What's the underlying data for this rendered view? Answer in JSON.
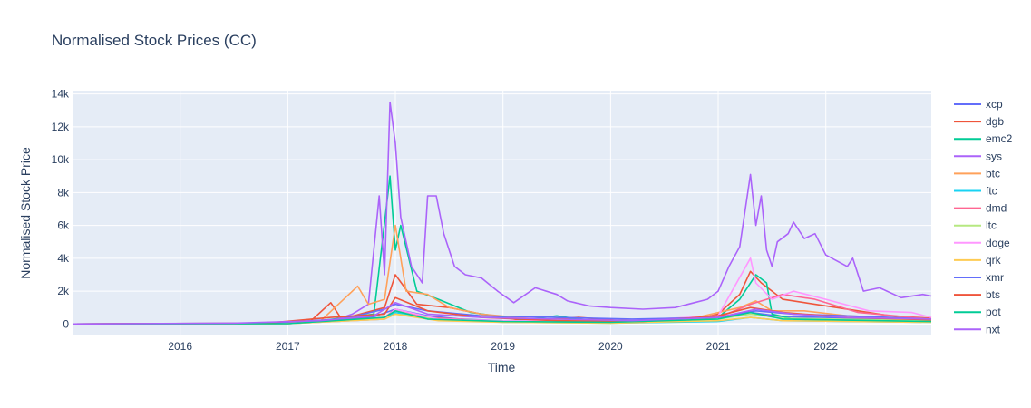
{
  "chart_data": {
    "type": "line",
    "title": "Normalised Stock Prices (CC)",
    "xlabel": "Time",
    "ylabel": "Normalised Stock Price",
    "xlim": [
      2015.0,
      2022.98
    ],
    "ylim": [
      -700,
      14200
    ],
    "x_ticks": [
      2016,
      2017,
      2018,
      2019,
      2020,
      2021,
      2022
    ],
    "x_tick_labels": [
      "2016",
      "2017",
      "2018",
      "2019",
      "2020",
      "2021",
      "2022"
    ],
    "y_ticks": [
      0,
      2000,
      4000,
      6000,
      8000,
      10000,
      12000,
      14000
    ],
    "y_tick_labels": [
      "0",
      "2k",
      "4k",
      "6k",
      "8k",
      "10k",
      "12k",
      "14k"
    ],
    "grid": true,
    "legend_position": "right",
    "series": [
      {
        "name": "xcp",
        "color": "#636efa",
        "x": [
          2015.0,
          2016.5,
          2017.3,
          2017.8,
          2018.0,
          2018.3,
          2018.6,
          2019.0,
          2020.0,
          2020.9,
          2021.3,
          2021.6,
          2022.0,
          2022.5,
          2022.98
        ],
        "y": [
          0,
          20,
          150,
          450,
          900,
          500,
          300,
          200,
          120,
          300,
          700,
          450,
          400,
          300,
          250
        ]
      },
      {
        "name": "dgb",
        "color": "#ef553b",
        "x": [
          2015.0,
          2016.5,
          2017.2,
          2017.4,
          2017.5,
          2017.9,
          2018.0,
          2018.2,
          2018.5,
          2018.8,
          2019.2,
          2019.7,
          2020.2,
          2020.8,
          2021.0,
          2021.2,
          2021.3,
          2021.4,
          2021.6,
          2021.9,
          2022.3,
          2022.6,
          2022.98
        ],
        "y": [
          0,
          30,
          100,
          1300,
          300,
          1000,
          3000,
          1200,
          1000,
          600,
          200,
          400,
          150,
          300,
          600,
          1800,
          3200,
          2500,
          1500,
          1200,
          800,
          500,
          350
        ]
      },
      {
        "name": "emc2",
        "color": "#00cc96",
        "x": [
          2015.0,
          2016.5,
          2017.3,
          2017.8,
          2017.95,
          2018.0,
          2018.05,
          2018.2,
          2018.4,
          2018.7,
          2019.2,
          2019.5,
          2019.8,
          2020.5,
          2021.0,
          2021.2,
          2021.35,
          2021.45,
          2021.5,
          2021.7,
          2022.0,
          2022.98
        ],
        "y": [
          0,
          20,
          200,
          600,
          9000,
          4500,
          6000,
          2000,
          1500,
          700,
          250,
          500,
          200,
          150,
          400,
          1500,
          3000,
          2500,
          600,
          300,
          200,
          150
        ]
      },
      {
        "name": "sys",
        "color": "#ab63fa",
        "x": [
          2015.0,
          2016.0,
          2017.0,
          2017.4,
          2017.6,
          2017.75,
          2017.85,
          2017.9,
          2017.95,
          2018.0,
          2018.05,
          2018.15,
          2018.25,
          2018.3,
          2018.38,
          2018.45,
          2018.55,
          2018.65,
          2018.8,
          2018.95,
          2019.1,
          2019.3,
          2019.5,
          2019.6,
          2019.8,
          2020.0,
          2020.3,
          2020.6,
          2020.9,
          2021.0,
          2021.1,
          2021.2,
          2021.3,
          2021.35,
          2021.4,
          2021.45,
          2021.5,
          2021.55,
          2021.65,
          2021.7,
          2021.8,
          2021.9,
          2022.0,
          2022.2,
          2022.25,
          2022.35,
          2022.5,
          2022.7,
          2022.9,
          2022.98
        ],
        "y": [
          0,
          0,
          20,
          150,
          600,
          1200,
          7800,
          3000,
          13500,
          11000,
          6500,
          3500,
          2500,
          7800,
          7800,
          5500,
          3500,
          3000,
          2800,
          2000,
          1300,
          2200,
          1800,
          1400,
          1100,
          1000,
          900,
          1000,
          1500,
          2000,
          3500,
          4700,
          9100,
          6000,
          7800,
          4500,
          3500,
          5000,
          5500,
          6200,
          5200,
          5500,
          4200,
          3500,
          4000,
          2000,
          2200,
          1600,
          1800,
          1700
        ]
      },
      {
        "name": "btc",
        "color": "#ffa15a",
        "x": [
          2015.0,
          2016.5,
          2017.3,
          2017.65,
          2017.75,
          2017.9,
          2018.0,
          2018.1,
          2018.3,
          2018.5,
          2018.8,
          2019.3,
          2020.0,
          2020.8,
          2021.2,
          2021.35,
          2021.5,
          2021.8,
          2022.2,
          2022.98
        ],
        "y": [
          0,
          30,
          150,
          2300,
          1200,
          1500,
          6000,
          2000,
          1800,
          1000,
          600,
          300,
          200,
          400,
          1000,
          1400,
          800,
          800,
          500,
          300
        ]
      },
      {
        "name": "ftc",
        "color": "#19d3f3",
        "x": [
          2015.0,
          2017.0,
          2017.9,
          2018.0,
          2018.3,
          2019.0,
          2020.0,
          2021.0,
          2021.3,
          2021.6,
          2022.98
        ],
        "y": [
          0,
          20,
          300,
          700,
          300,
          100,
          50,
          150,
          400,
          200,
          100
        ]
      },
      {
        "name": "dmd",
        "color": "#ff6692",
        "x": [
          2015.0,
          2017.0,
          2017.9,
          2018.0,
          2018.3,
          2019.0,
          2020.0,
          2021.0,
          2021.3,
          2021.6,
          2021.9,
          2022.3,
          2022.98
        ],
        "y": [
          0,
          20,
          400,
          900,
          400,
          150,
          80,
          400,
          1200,
          1800,
          1500,
          700,
          300
        ]
      },
      {
        "name": "ltc",
        "color": "#b6e880",
        "x": [
          2015.0,
          2017.0,
          2017.9,
          2018.0,
          2018.4,
          2019.0,
          2020.0,
          2021.0,
          2021.3,
          2021.6,
          2022.98
        ],
        "y": [
          0,
          20,
          300,
          600,
          300,
          150,
          100,
          300,
          600,
          350,
          200
        ]
      },
      {
        "name": "doge",
        "color": "#ff97ff",
        "x": [
          2015.0,
          2017.0,
          2017.9,
          2018.0,
          2018.4,
          2019.0,
          2020.0,
          2021.0,
          2021.3,
          2021.35,
          2021.5,
          2021.7,
          2022.0,
          2022.4,
          2022.8,
          2022.98
        ],
        "y": [
          0,
          20,
          300,
          900,
          300,
          200,
          150,
          500,
          4000,
          2500,
          1500,
          2000,
          1500,
          800,
          700,
          400
        ]
      },
      {
        "name": "qrk",
        "color": "#fecb52",
        "x": [
          2015.0,
          2017.0,
          2017.9,
          2018.0,
          2018.4,
          2019.0,
          2020.0,
          2021.0,
          2021.3,
          2021.6,
          2022.98
        ],
        "y": [
          0,
          20,
          300,
          600,
          200,
          100,
          50,
          200,
          400,
          200,
          100
        ]
      },
      {
        "name": "xmr",
        "color": "#636efa",
        "x": [
          2015.0,
          2016.8,
          2017.5,
          2017.9,
          2018.0,
          2018.3,
          2018.8,
          2019.5,
          2020.2,
          2021.0,
          2021.35,
          2021.7,
          2022.2,
          2022.98
        ],
        "y": [
          0,
          50,
          300,
          900,
          1200,
          800,
          500,
          400,
          300,
          400,
          800,
          600,
          500,
          300
        ]
      },
      {
        "name": "bts",
        "color": "#ef553b",
        "x": [
          2015.0,
          2016.8,
          2017.4,
          2017.9,
          2018.0,
          2018.3,
          2018.8,
          2019.5,
          2020.3,
          2021.0,
          2021.3,
          2021.6,
          2022.2,
          2022.98
        ],
        "y": [
          0,
          50,
          400,
          600,
          1600,
          800,
          400,
          200,
          150,
          500,
          1000,
          700,
          400,
          250
        ]
      },
      {
        "name": "pot",
        "color": "#00cc96",
        "x": [
          2015.0,
          2017.0,
          2017.9,
          2018.0,
          2018.3,
          2019.0,
          2020.0,
          2021.0,
          2021.3,
          2021.6,
          2022.98
        ],
        "y": [
          0,
          20,
          400,
          800,
          300,
          150,
          100,
          300,
          700,
          300,
          150
        ]
      },
      {
        "name": "nxt",
        "color": "#ab63fa",
        "x": [
          2015.0,
          2016.5,
          2017.3,
          2017.8,
          2018.0,
          2018.3,
          2018.8,
          2019.5,
          2020.2,
          2021.0,
          2021.35,
          2021.7,
          2022.2,
          2022.98
        ],
        "y": [
          0,
          50,
          200,
          500,
          1300,
          600,
          400,
          300,
          200,
          400,
          900,
          600,
          400,
          300
        ]
      }
    ]
  }
}
